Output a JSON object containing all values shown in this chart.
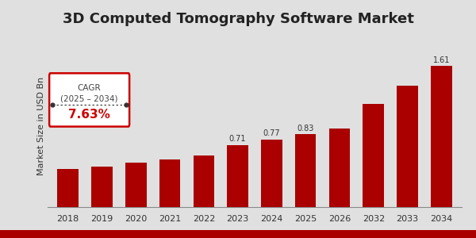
{
  "title": "3D Computed Tomography Software Market",
  "ylabel": "Market Size in USD Bn",
  "categories": [
    "2018",
    "2019",
    "2020",
    "2021",
    "2022",
    "2023",
    "2024",
    "2025",
    "2026",
    "2032",
    "2033",
    "2034"
  ],
  "values": [
    0.435,
    0.465,
    0.505,
    0.545,
    0.59,
    0.71,
    0.77,
    0.83,
    0.9,
    1.18,
    1.39,
    1.61
  ],
  "bar_color": "#AA0000",
  "background_color": "#E0E0E0",
  "title_fontsize": 13,
  "axis_label_fontsize": 8,
  "tick_fontsize": 8,
  "value_labels": [
    null,
    null,
    null,
    null,
    null,
    "0.71",
    "0.77",
    "0.83",
    null,
    null,
    null,
    "1.61"
  ],
  "ylim": [
    0,
    1.85
  ],
  "cagr_label": "CAGR",
  "cagr_period": "(2025 – 2034)",
  "cagr_value": "7.63%",
  "bottom_bar_color": "#AA0000",
  "bottom_bar_height": 0.03
}
